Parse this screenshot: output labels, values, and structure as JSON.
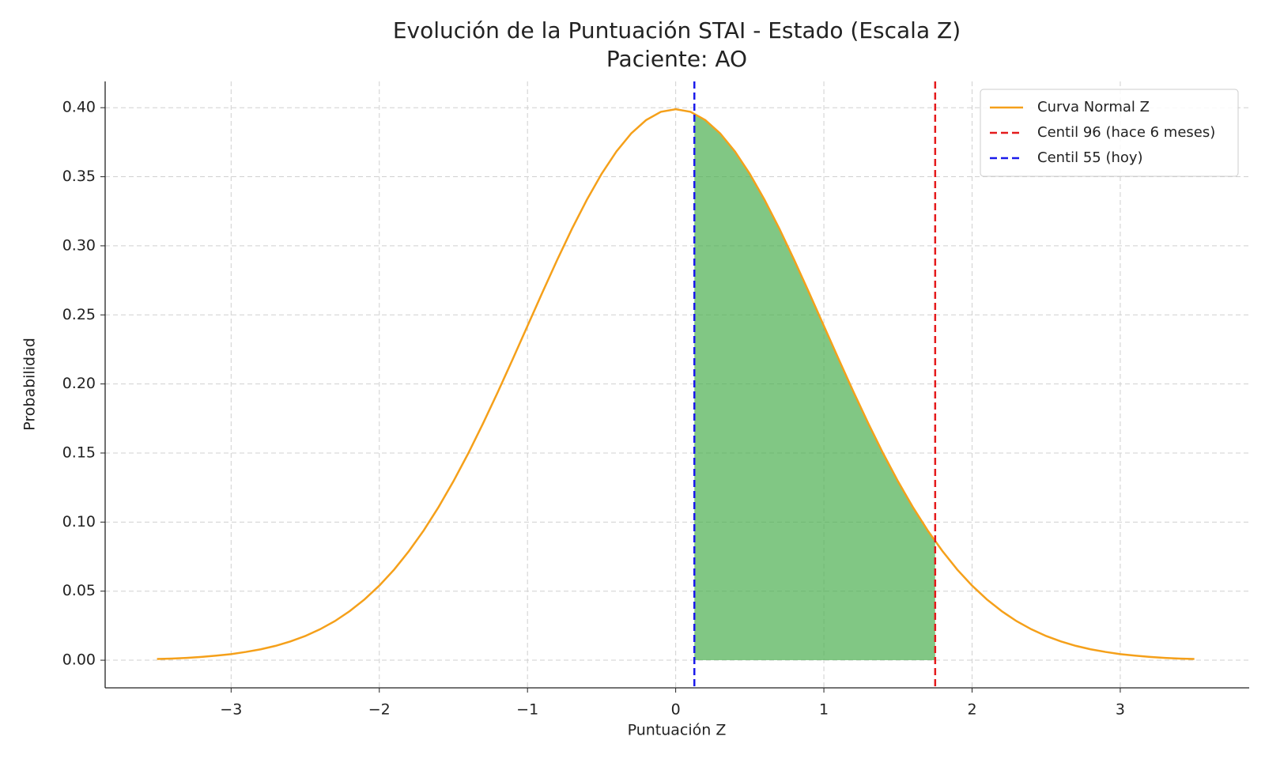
{
  "chart_data": {
    "type": "line",
    "title": "Evolución de la Puntuación STAI - Estado (Escala Z)",
    "subtitle": "Paciente: AO",
    "x_label": "Puntuación Z",
    "y_label": "Probabilidad",
    "x": [
      -3.5,
      -3.4,
      -3.3,
      -3.2,
      -3.1,
      -3.0,
      -2.9,
      -2.8,
      -2.7,
      -2.6,
      -2.5,
      -2.4,
      -2.3,
      -2.2,
      -2.1,
      -2.0,
      -1.9,
      -1.8,
      -1.7,
      -1.6,
      -1.5,
      -1.4,
      -1.3,
      -1.2,
      -1.1,
      -1.0,
      -0.9,
      -0.8,
      -0.7,
      -0.6,
      -0.5,
      -0.4,
      -0.3,
      -0.2,
      -0.1,
      0.0,
      0.1,
      0.2,
      0.3,
      0.4,
      0.5,
      0.6,
      0.7,
      0.8,
      0.9,
      1.0,
      1.1,
      1.2,
      1.3,
      1.4,
      1.5,
      1.6,
      1.7,
      1.8,
      1.9,
      2.0,
      2.1,
      2.2,
      2.3,
      2.4,
      2.5,
      2.6,
      2.7,
      2.8,
      2.9,
      3.0,
      3.1,
      3.2,
      3.3,
      3.4,
      3.5
    ],
    "series": [
      {
        "name": "Curva Normal Z",
        "color": "#f5a01a",
        "values": [
          0.0009,
          0.0012,
          0.0017,
          0.0024,
          0.0033,
          0.0044,
          0.006,
          0.0079,
          0.0104,
          0.0136,
          0.0175,
          0.0224,
          0.0283,
          0.0355,
          0.044,
          0.054,
          0.0656,
          0.079,
          0.094,
          0.1109,
          0.1295,
          0.1497,
          0.1714,
          0.1942,
          0.2179,
          0.242,
          0.2661,
          0.2897,
          0.3123,
          0.3332,
          0.3521,
          0.3683,
          0.3814,
          0.391,
          0.397,
          0.3989,
          0.397,
          0.391,
          0.3814,
          0.3683,
          0.3521,
          0.3332,
          0.3123,
          0.2897,
          0.2661,
          0.242,
          0.2179,
          0.1942,
          0.1714,
          0.1497,
          0.1295,
          0.1109,
          0.094,
          0.079,
          0.0656,
          0.054,
          0.044,
          0.0355,
          0.0283,
          0.0224,
          0.0175,
          0.0136,
          0.0104,
          0.0079,
          0.006,
          0.0044,
          0.0033,
          0.0024,
          0.0017,
          0.0012,
          0.0009
        ]
      }
    ],
    "vlines": [
      {
        "name": "Centil 96 (hace 6 meses)",
        "x": 1.751,
        "color": "#e41a1c"
      },
      {
        "name": "Centil 55 (hoy)",
        "x": 0.126,
        "color": "#1a1aeb"
      }
    ],
    "fill_color": "#4caf50",
    "fill_opacity": 0.7,
    "xlim": [
      -3.85,
      3.87
    ],
    "ylim": [
      -0.02,
      0.419
    ],
    "xticks": [
      {
        "value": -3,
        "label": "−3"
      },
      {
        "value": -2,
        "label": "−2"
      },
      {
        "value": -1,
        "label": "−1"
      },
      0,
      1,
      2,
      3
    ],
    "yticks": [
      {
        "value": 0,
        "label": "0.00"
      },
      {
        "value": 0.05,
        "label": "0.05"
      },
      {
        "value": 0.1,
        "label": "0.10"
      },
      {
        "value": 0.15,
        "label": "0.15"
      },
      {
        "value": 0.2,
        "label": "0.20"
      },
      {
        "value": 0.25,
        "label": "0.25"
      },
      {
        "value": 0.3,
        "label": "0.30"
      },
      {
        "value": 0.35,
        "label": "0.35"
      },
      {
        "value": 0.4,
        "label": "0.40"
      }
    ],
    "grid": true,
    "legend": "upper right"
  }
}
